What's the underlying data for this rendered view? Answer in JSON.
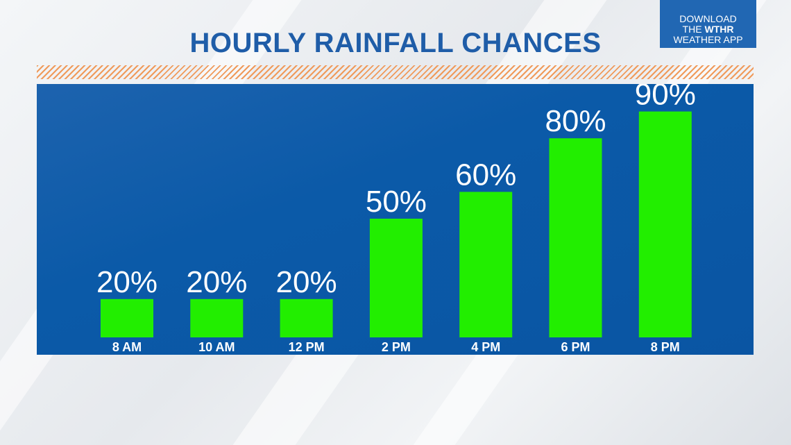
{
  "header": {
    "title": "HOURLY RAINFALL CHANCES"
  },
  "promo": {
    "line1": "DOWNLOAD",
    "line2_prefix": "THE ",
    "line2_brand": "WTHR",
    "line3": "WEATHER APP"
  },
  "colors": {
    "title": "#1f5da8",
    "panel": "#0b5aa8",
    "bar": "#22ee00",
    "accent_hatch": "#f09a5a"
  },
  "chart_data": {
    "type": "bar",
    "title": "HOURLY RAINFALL CHANCES",
    "categories": [
      "8 AM",
      "10 AM",
      "12 PM",
      "2 PM",
      "4 PM",
      "6 PM",
      "8 PM"
    ],
    "values": [
      20,
      20,
      20,
      50,
      60,
      80,
      90
    ],
    "value_labels": [
      "20%",
      "20%",
      "20%",
      "50%",
      "60%",
      "80%",
      "90%"
    ],
    "unit": "%",
    "xlabel": "",
    "ylabel": "",
    "ylim": [
      0,
      100
    ],
    "grid": false,
    "legend": "none"
  }
}
